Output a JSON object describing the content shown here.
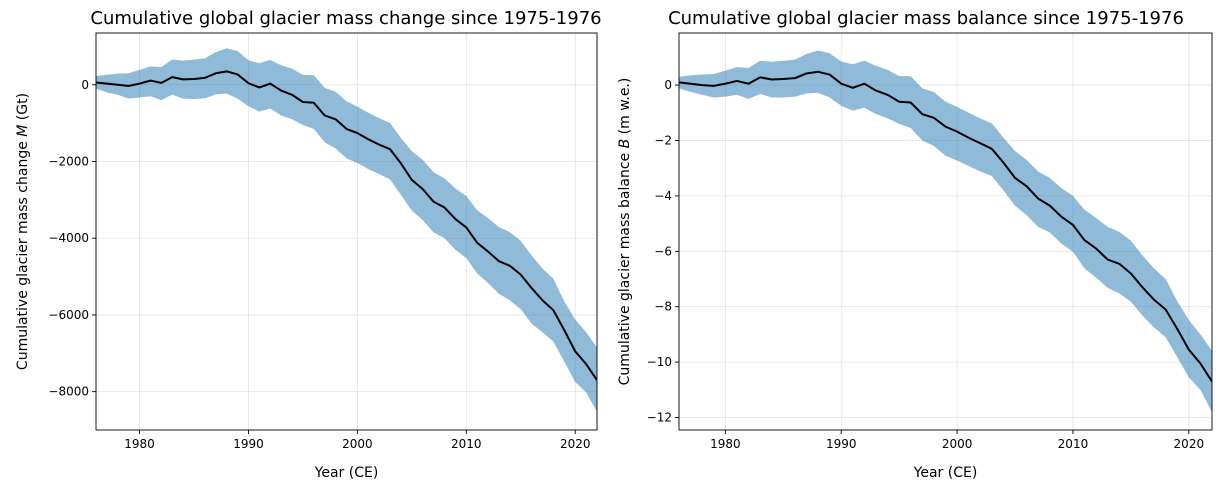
{
  "chart_data": [
    {
      "type": "area",
      "title": "Cumulative global glacier mass change since 1975-1976",
      "xlabel": "Year (CE)",
      "ylabel_prefix": "Cumulative glacier mass change ",
      "ylabel_symbol": "M",
      "ylabel_unit": " (Gt)",
      "xlim": [
        1976,
        2022
      ],
      "ylim": [
        -9000,
        1350
      ],
      "x_ticks": [
        1980,
        1990,
        2000,
        2010,
        2020
      ],
      "y_ticks": [
        0,
        -2000,
        -4000,
        -6000,
        -8000
      ],
      "y_tick_labels": [
        "0",
        "−2000",
        "−4000",
        "−6000",
        "−8000"
      ],
      "x": [
        1976,
        1977,
        1978,
        1979,
        1980,
        1981,
        1982,
        1983,
        1984,
        1985,
        1986,
        1987,
        1988,
        1989,
        1990,
        1991,
        1992,
        1993,
        1994,
        1995,
        1996,
        1997,
        1998,
        1999,
        2000,
        2001,
        2002,
        2003,
        2004,
        2005,
        2006,
        2007,
        2008,
        2009,
        2010,
        2011,
        2012,
        2013,
        2014,
        2015,
        2016,
        2017,
        2018,
        2019,
        2020,
        2021,
        2022
      ],
      "series": [
        {
          "name": "mean",
          "values": [
            60,
            30,
            0,
            -30,
            30,
            110,
            50,
            200,
            140,
            150,
            180,
            300,
            350,
            270,
            40,
            -70,
            30,
            -150,
            -260,
            -450,
            -470,
            -800,
            -900,
            -1150,
            -1260,
            -1420,
            -1560,
            -1680,
            -2050,
            -2480,
            -2720,
            -3050,
            -3200,
            -3500,
            -3720,
            -4120,
            -4350,
            -4600,
            -4720,
            -4950,
            -5300,
            -5620,
            -5880,
            -6400,
            -6950,
            -7280,
            -7700
          ]
        },
        {
          "name": "upper",
          "values": [
            230,
            260,
            290,
            300,
            390,
            480,
            460,
            660,
            630,
            660,
            690,
            850,
            950,
            880,
            640,
            560,
            650,
            510,
            420,
            260,
            250,
            -80,
            -180,
            -430,
            -570,
            -730,
            -870,
            -1000,
            -1390,
            -1730,
            -1960,
            -2280,
            -2440,
            -2700,
            -2900,
            -3270,
            -3480,
            -3710,
            -3840,
            -4070,
            -4450,
            -4790,
            -5060,
            -5650,
            -6120,
            -6450,
            -6850
          ]
        },
        {
          "name": "lower",
          "values": [
            -100,
            -200,
            -260,
            -360,
            -330,
            -300,
            -400,
            -260,
            -360,
            -370,
            -350,
            -250,
            -230,
            -360,
            -560,
            -700,
            -620,
            -800,
            -900,
            -1050,
            -1150,
            -1500,
            -1660,
            -1920,
            -2040,
            -2200,
            -2330,
            -2470,
            -2870,
            -3280,
            -3530,
            -3850,
            -4000,
            -4300,
            -4520,
            -4920,
            -5170,
            -5450,
            -5620,
            -5850,
            -6230,
            -6450,
            -6700,
            -7220,
            -7750,
            -8020,
            -8530
          ]
        }
      ]
    },
    {
      "type": "area",
      "title": "Cumulative global glacier mass balance since 1975-1976",
      "xlabel": "Year (CE)",
      "ylabel_prefix": "Cumulative glacier mass balance ",
      "ylabel_symbol": "B",
      "ylabel_unit": " (m w.e.)",
      "xlim": [
        1976,
        2022
      ],
      "ylim": [
        -12.45,
        1.88
      ],
      "x_ticks": [
        1980,
        1990,
        2000,
        2010,
        2020
      ],
      "y_ticks": [
        0,
        -2,
        -4,
        -6,
        -8,
        -10,
        -12
      ],
      "y_tick_labels": [
        "0",
        "−2",
        "−4",
        "−6",
        "−8",
        "−10",
        "−12"
      ],
      "x": [
        1976,
        1977,
        1978,
        1979,
        1980,
        1981,
        1982,
        1983,
        1984,
        1985,
        1986,
        1987,
        1988,
        1989,
        1990,
        1991,
        1992,
        1993,
        1994,
        1995,
        1996,
        1997,
        1998,
        1999,
        2000,
        2001,
        2002,
        2003,
        2004,
        2005,
        2006,
        2007,
        2008,
        2009,
        2010,
        2011,
        2012,
        2013,
        2014,
        2015,
        2016,
        2017,
        2018,
        2019,
        2020,
        2021,
        2022
      ],
      "series": [
        {
          "name": "mean",
          "values": [
            0.1,
            0.05,
            0.0,
            -0.03,
            0.05,
            0.15,
            0.05,
            0.28,
            0.2,
            0.22,
            0.25,
            0.42,
            0.48,
            0.38,
            0.05,
            -0.1,
            0.05,
            -0.2,
            -0.35,
            -0.6,
            -0.63,
            -1.05,
            -1.18,
            -1.5,
            -1.68,
            -1.9,
            -2.1,
            -2.3,
            -2.8,
            -3.35,
            -3.65,
            -4.1,
            -4.35,
            -4.75,
            -5.05,
            -5.6,
            -5.9,
            -6.3,
            -6.45,
            -6.8,
            -7.3,
            -7.75,
            -8.1,
            -8.8,
            -9.55,
            -10.05,
            -10.7
          ]
        },
        {
          "name": "upper",
          "values": [
            0.3,
            0.35,
            0.38,
            0.4,
            0.52,
            0.65,
            0.62,
            0.88,
            0.84,
            0.88,
            0.92,
            1.12,
            1.25,
            1.15,
            0.85,
            0.75,
            0.88,
            0.7,
            0.55,
            0.33,
            0.32,
            -0.12,
            -0.25,
            -0.6,
            -0.78,
            -1.0,
            -1.2,
            -1.38,
            -1.9,
            -2.38,
            -2.7,
            -3.12,
            -3.35,
            -3.72,
            -4.0,
            -4.5,
            -4.8,
            -5.12,
            -5.3,
            -5.62,
            -6.15,
            -6.62,
            -7.0,
            -7.8,
            -8.48,
            -9.0,
            -9.6
          ]
        },
        {
          "name": "lower",
          "values": [
            -0.12,
            -0.25,
            -0.35,
            -0.45,
            -0.42,
            -0.35,
            -0.5,
            -0.32,
            -0.45,
            -0.45,
            -0.42,
            -0.3,
            -0.28,
            -0.45,
            -0.75,
            -0.92,
            -0.82,
            -1.05,
            -1.2,
            -1.4,
            -1.55,
            -2.0,
            -2.2,
            -2.55,
            -2.72,
            -2.92,
            -3.12,
            -3.28,
            -3.8,
            -4.35,
            -4.7,
            -5.12,
            -5.32,
            -5.72,
            -6.02,
            -6.62,
            -6.95,
            -7.32,
            -7.52,
            -7.82,
            -8.32,
            -8.75,
            -9.1,
            -9.82,
            -10.55,
            -11.0,
            -11.8
          ]
        }
      ]
    }
  ]
}
